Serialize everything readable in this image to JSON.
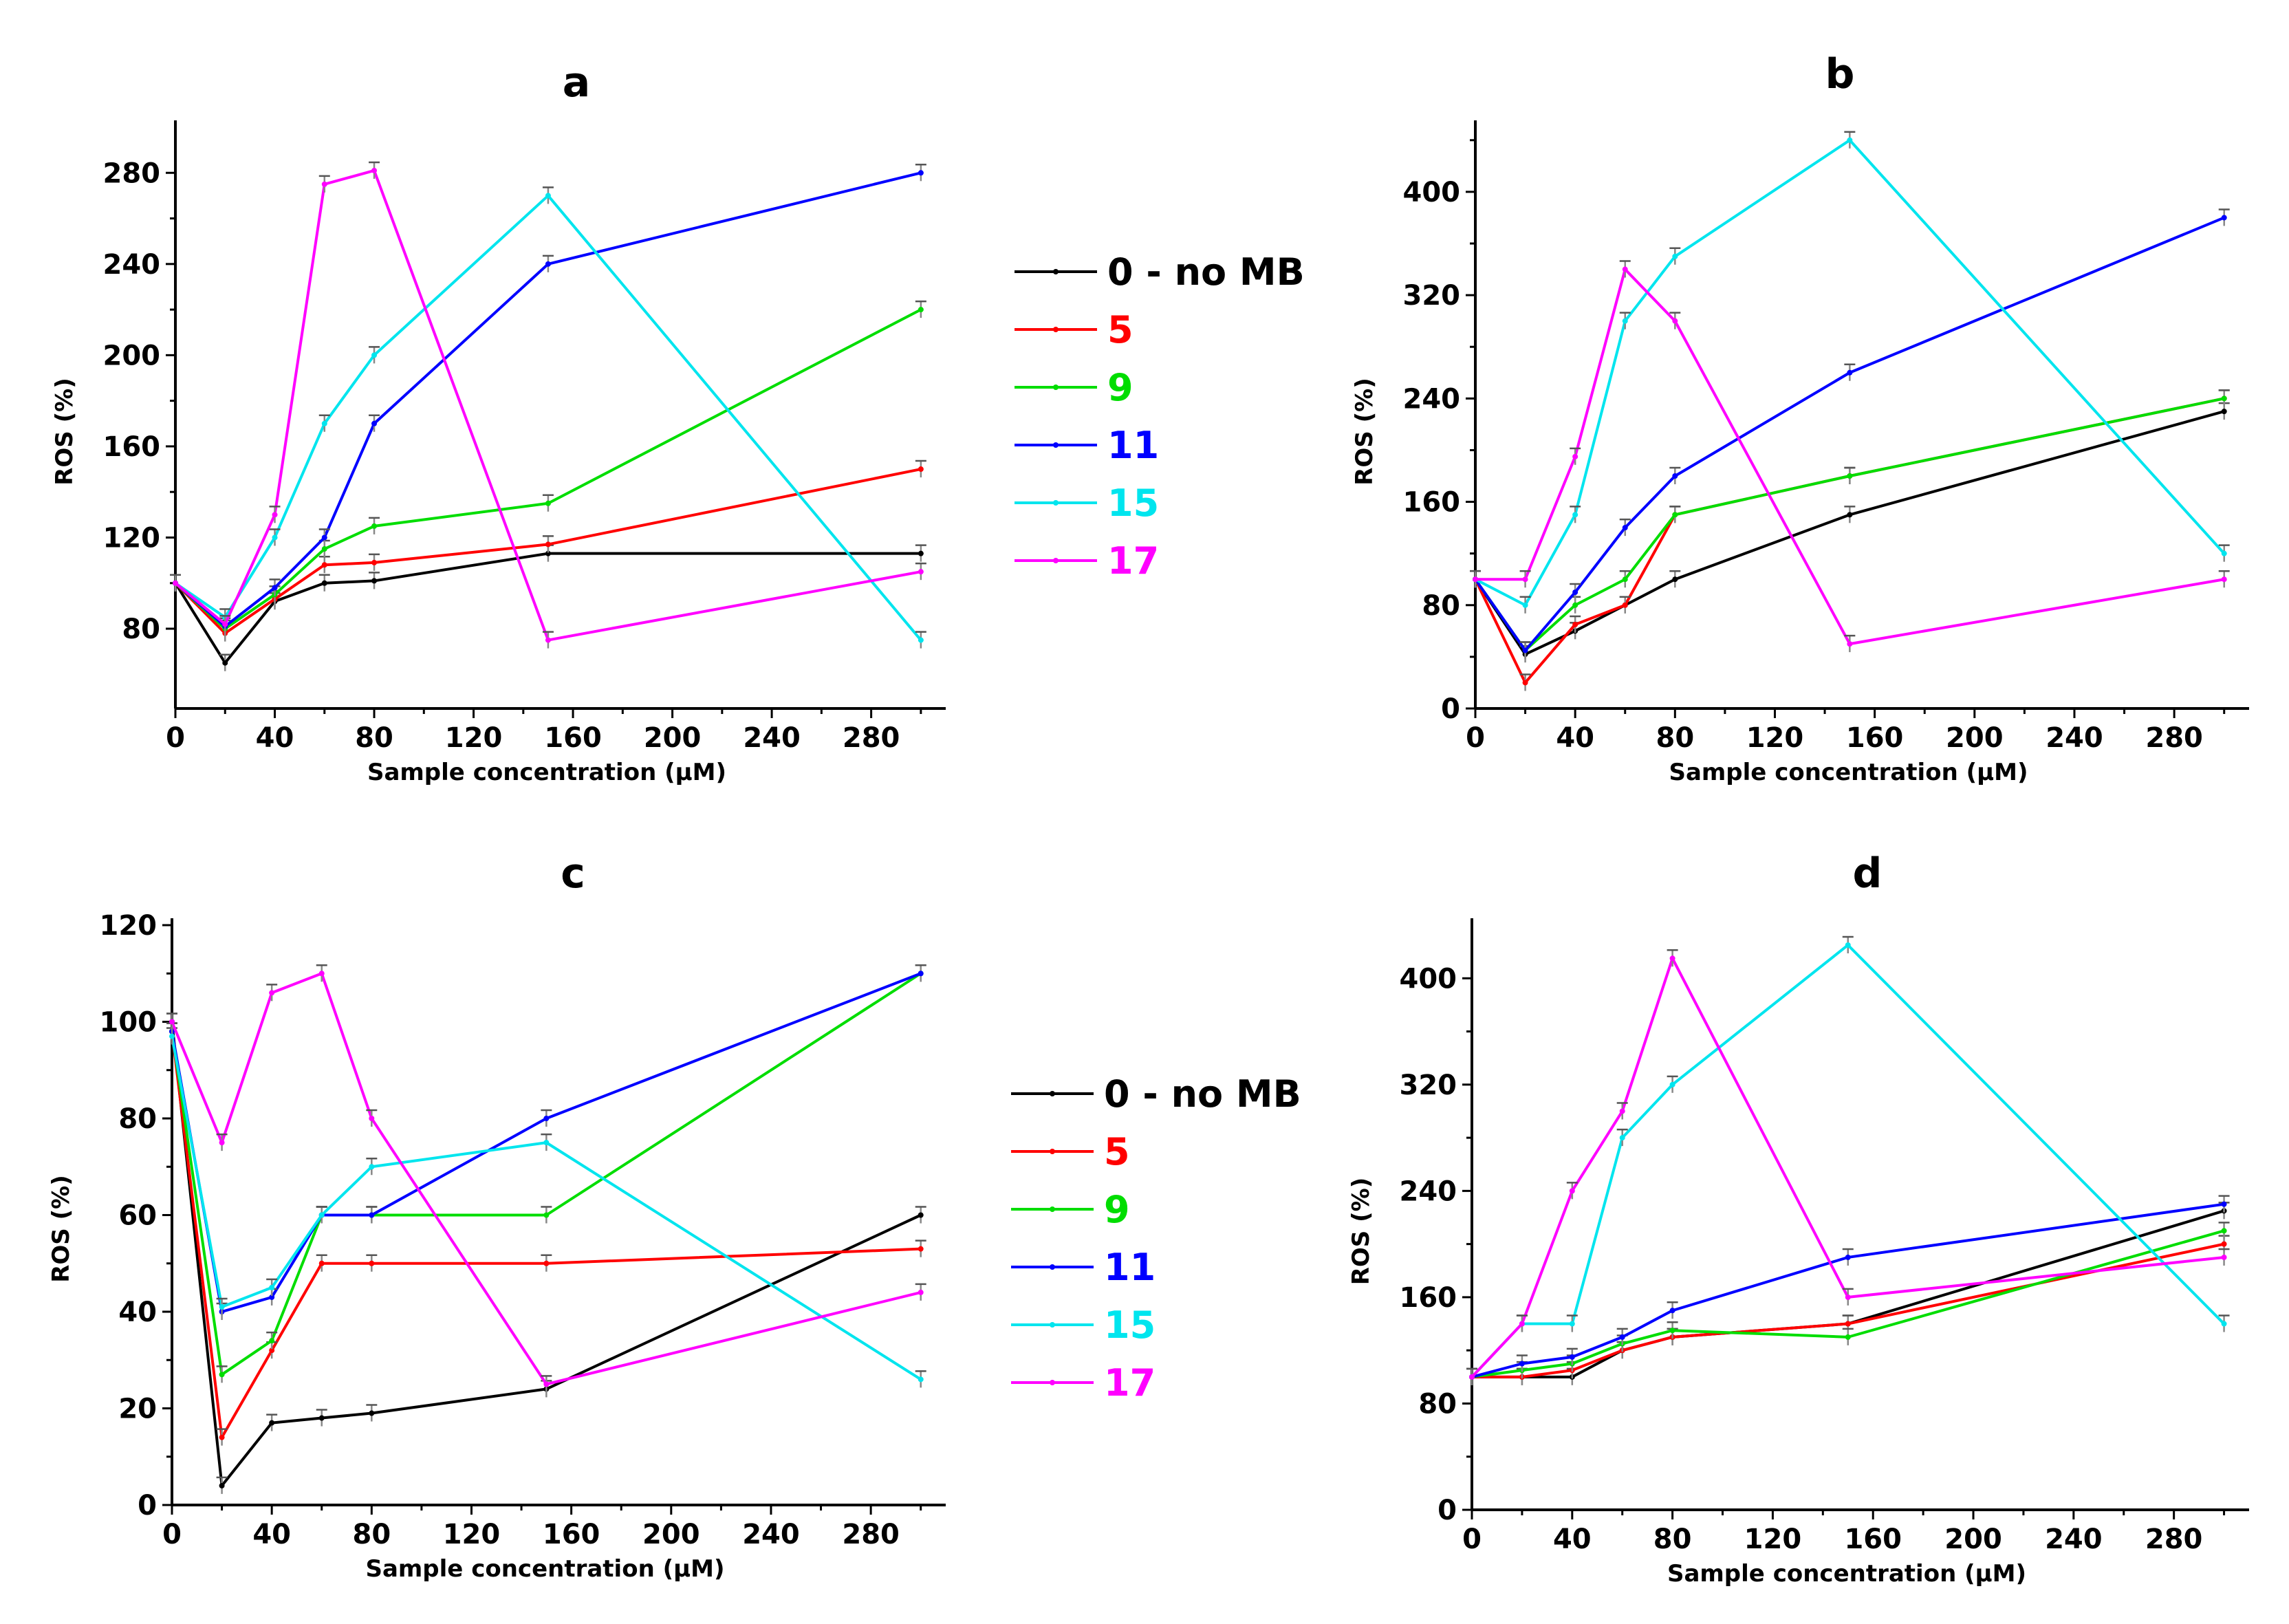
{
  "chart_data": [
    {
      "type": "line",
      "title": "a",
      "xlabel": "Sample concentration (µM)",
      "ylabel": "ROS (%)",
      "xlim": [
        0,
        310
      ],
      "ylim": [
        45,
        300
      ],
      "xticks": [
        0,
        40,
        80,
        120,
        160,
        200,
        240,
        280
      ],
      "yticks": [
        80,
        120,
        160,
        200,
        240,
        280
      ],
      "x": [
        0,
        20,
        40,
        60,
        80,
        150,
        300
      ],
      "series": [
        {
          "name": "0 - no MB",
          "color": "#000000",
          "values": [
            100,
            65,
            92,
            100,
            101,
            113,
            113
          ]
        },
        {
          "name": "5",
          "color": "#ff0000",
          "values": [
            100,
            78,
            93,
            108,
            109,
            117,
            150
          ]
        },
        {
          "name": "9",
          "color": "#00dd00",
          "values": [
            100,
            80,
            95,
            115,
            125,
            135,
            220
          ]
        },
        {
          "name": "11",
          "color": "#0000ff",
          "values": [
            100,
            81,
            98,
            120,
            170,
            240,
            280
          ]
        },
        {
          "name": "15",
          "color": "#00e5ee",
          "values": [
            100,
            85,
            120,
            170,
            200,
            270,
            75
          ]
        },
        {
          "name": "17",
          "color": "#ff00ff",
          "values": [
            100,
            82,
            130,
            275,
            281,
            75,
            105
          ]
        }
      ]
    },
    {
      "type": "line",
      "title": "b",
      "xlabel": "Sample concentration (µM)",
      "ylabel": "ROS (%)",
      "xlim": [
        0,
        310
      ],
      "ylim": [
        0,
        450
      ],
      "xticks": [
        0,
        40,
        80,
        120,
        160,
        200,
        240,
        280
      ],
      "yticks": [
        0,
        80,
        160,
        240,
        320,
        400
      ],
      "x": [
        0,
        20,
        40,
        60,
        80,
        150,
        300
      ],
      "series": [
        {
          "name": "0 - no MB",
          "color": "#000000",
          "values": [
            100,
            42,
            60,
            80,
            100,
            150,
            230
          ]
        },
        {
          "name": "5",
          "color": "#ff0000",
          "values": [
            100,
            20,
            65,
            80,
            150,
            180,
            240
          ]
        },
        {
          "name": "9",
          "color": "#00dd00",
          "values": [
            100,
            45,
            80,
            100,
            150,
            180,
            240
          ]
        },
        {
          "name": "11",
          "color": "#0000ff",
          "values": [
            100,
            45,
            90,
            140,
            180,
            260,
            380
          ]
        },
        {
          "name": "15",
          "color": "#00e5ee",
          "values": [
            100,
            80,
            150,
            300,
            350,
            440,
            120
          ]
        },
        {
          "name": "17",
          "color": "#ff00ff",
          "values": [
            100,
            100,
            195,
            340,
            300,
            50,
            100
          ]
        }
      ]
    },
    {
      "type": "line",
      "title": "c",
      "xlabel": "Sample concentration (µM)",
      "ylabel": "ROS (%)",
      "xlim": [
        0,
        310
      ],
      "ylim": [
        0,
        120
      ],
      "xticks": [
        0,
        40,
        80,
        120,
        160,
        200,
        240,
        280
      ],
      "yticks": [
        0,
        20,
        40,
        60,
        80,
        100,
        120
      ],
      "x": [
        0,
        20,
        40,
        60,
        80,
        150,
        300
      ],
      "series": [
        {
          "name": "0 - no MB",
          "color": "#000000",
          "values": [
            100,
            4,
            17,
            18,
            19,
            24,
            60
          ]
        },
        {
          "name": "5",
          "color": "#ff0000",
          "values": [
            98,
            14,
            32,
            50,
            50,
            50,
            53
          ]
        },
        {
          "name": "9",
          "color": "#00dd00",
          "values": [
            98,
            27,
            34,
            60,
            60,
            60,
            110
          ]
        },
        {
          "name": "11",
          "color": "#0000ff",
          "values": [
            98,
            40,
            43,
            60,
            60,
            80,
            110
          ]
        },
        {
          "name": "15",
          "color": "#00e5ee",
          "values": [
            97,
            41,
            45,
            60,
            70,
            75,
            26
          ]
        },
        {
          "name": "17",
          "color": "#ff00ff",
          "values": [
            100,
            75,
            106,
            110,
            80,
            25,
            44
          ]
        }
      ]
    },
    {
      "type": "line",
      "title": "d",
      "xlabel": "Sample concentration (µM)",
      "ylabel": "ROS (%)",
      "xlim": [
        0,
        310
      ],
      "ylim": [
        0,
        440
      ],
      "xticks": [
        0,
        40,
        80,
        120,
        160,
        200,
        240,
        280
      ],
      "yticks": [
        0,
        80,
        160,
        240,
        320,
        400
      ],
      "x": [
        0,
        20,
        40,
        60,
        80,
        150,
        300
      ],
      "series": [
        {
          "name": "0 - no MB",
          "color": "#000000",
          "values": [
            100,
            100,
            100,
            120,
            130,
            140,
            225
          ]
        },
        {
          "name": "5",
          "color": "#ff0000",
          "values": [
            100,
            100,
            105,
            120,
            130,
            140,
            200
          ]
        },
        {
          "name": "9",
          "color": "#00dd00",
          "values": [
            100,
            105,
            110,
            125,
            135,
            130,
            210
          ]
        },
        {
          "name": "11",
          "color": "#0000ff",
          "values": [
            100,
            110,
            115,
            130,
            150,
            190,
            230
          ]
        },
        {
          "name": "15",
          "color": "#00e5ee",
          "values": [
            100,
            140,
            140,
            280,
            320,
            425,
            140
          ]
        },
        {
          "name": "17",
          "color": "#ff00ff",
          "values": [
            100,
            140,
            240,
            300,
            415,
            160,
            190
          ]
        }
      ]
    }
  ],
  "legends": [
    {
      "entries": [
        {
          "label": "0 - no MB",
          "color": "#000000"
        },
        {
          "label": "5",
          "color": "#ff0000"
        },
        {
          "label": "9",
          "color": "#00dd00"
        },
        {
          "label": "11",
          "color": "#0000ff"
        },
        {
          "label": "15",
          "color": "#00e5ee"
        },
        {
          "label": "17",
          "color": "#ff00ff"
        }
      ]
    },
    {
      "entries": [
        {
          "label": "0 - no MB",
          "color": "#000000"
        },
        {
          "label": "5",
          "color": "#ff0000"
        },
        {
          "label": "9",
          "color": "#00dd00"
        },
        {
          "label": "11",
          "color": "#0000ff"
        },
        {
          "label": "15",
          "color": "#00e5ee"
        },
        {
          "label": "17",
          "color": "#ff00ff"
        }
      ]
    }
  ]
}
